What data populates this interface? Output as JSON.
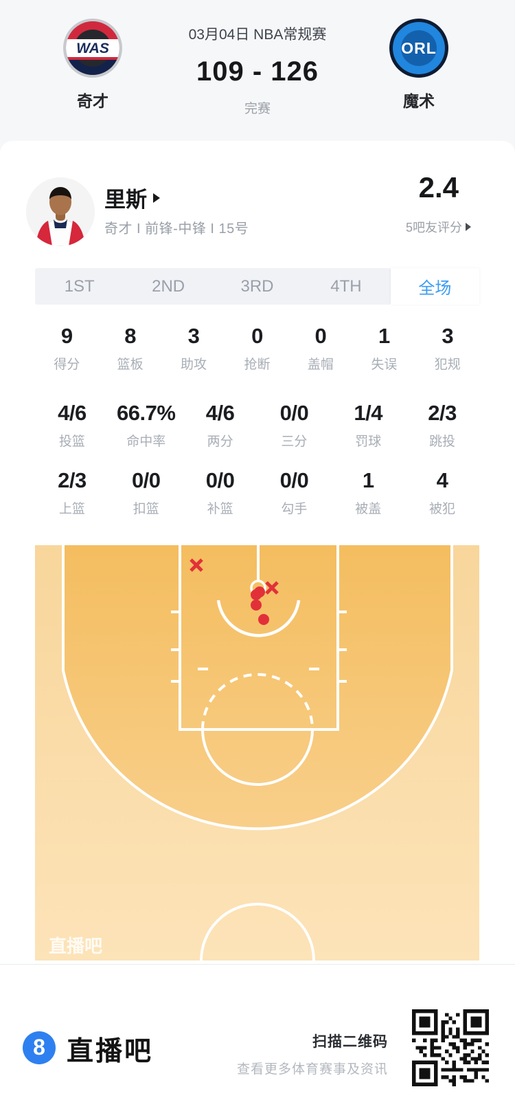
{
  "header": {
    "date": "03月04日 NBA常规赛",
    "home_score": "109",
    "score_separator": "-",
    "away_score": "126",
    "status": "完赛",
    "home_team": {
      "abbr": "WAS",
      "name": "奇才"
    },
    "away_team": {
      "abbr": "ORL",
      "name": "魔术"
    }
  },
  "player": {
    "name": "里斯",
    "info": "奇才 I 前锋-中锋 I 15号",
    "rating": "2.4",
    "rating_label": "5吧友评分"
  },
  "tabs": {
    "items": [
      "1ST",
      "2ND",
      "3RD",
      "4TH",
      "全场"
    ],
    "active": "全场"
  },
  "stats": {
    "row1": [
      {
        "value": "9",
        "label": "得分"
      },
      {
        "value": "8",
        "label": "篮板"
      },
      {
        "value": "3",
        "label": "助攻"
      },
      {
        "value": "0",
        "label": "抢断"
      },
      {
        "value": "0",
        "label": "盖帽"
      },
      {
        "value": "1",
        "label": "失误"
      },
      {
        "value": "3",
        "label": "犯规"
      }
    ],
    "row2": [
      {
        "value": "4/6",
        "label": "投篮"
      },
      {
        "value": "66.7%",
        "label": "命中率"
      },
      {
        "value": "4/6",
        "label": "两分"
      },
      {
        "value": "0/0",
        "label": "三分"
      },
      {
        "value": "1/4",
        "label": "罚球"
      },
      {
        "value": "2/3",
        "label": "跳投"
      }
    ],
    "row3": [
      {
        "value": "2/3",
        "label": "上篮"
      },
      {
        "value": "0/0",
        "label": "扣篮"
      },
      {
        "value": "0/0",
        "label": "补篮"
      },
      {
        "value": "0/0",
        "label": "勾手"
      },
      {
        "value": "1",
        "label": "被盖"
      },
      {
        "value": "4",
        "label": "被犯"
      }
    ]
  },
  "shot_chart": {
    "watermark": "直播吧",
    "court_size": [
      647,
      604
    ],
    "made": [
      [
        327,
        68
      ],
      [
        322,
        72
      ],
      [
        322,
        87
      ],
      [
        333,
        108
      ]
    ],
    "missed": [
      [
        235,
        29
      ],
      [
        345,
        62
      ]
    ],
    "colors": {
      "marker_red": "#e23039",
      "court_inner_top": "#f4bd5f",
      "court_inner_bottom": "#f8cf8a",
      "court_outer_top": "#f8d69b",
      "court_outer_bottom": "#fce3b8",
      "lines": "#ffffff"
    }
  },
  "footer": {
    "logo_glyph": "8",
    "brand": "直播吧",
    "qr_title": "扫描二维码",
    "qr_subtitle": "查看更多体育赛事及资讯"
  },
  "colors": {
    "accent_blue": "#3b9cf2",
    "text_dark": "#17181a"
  }
}
